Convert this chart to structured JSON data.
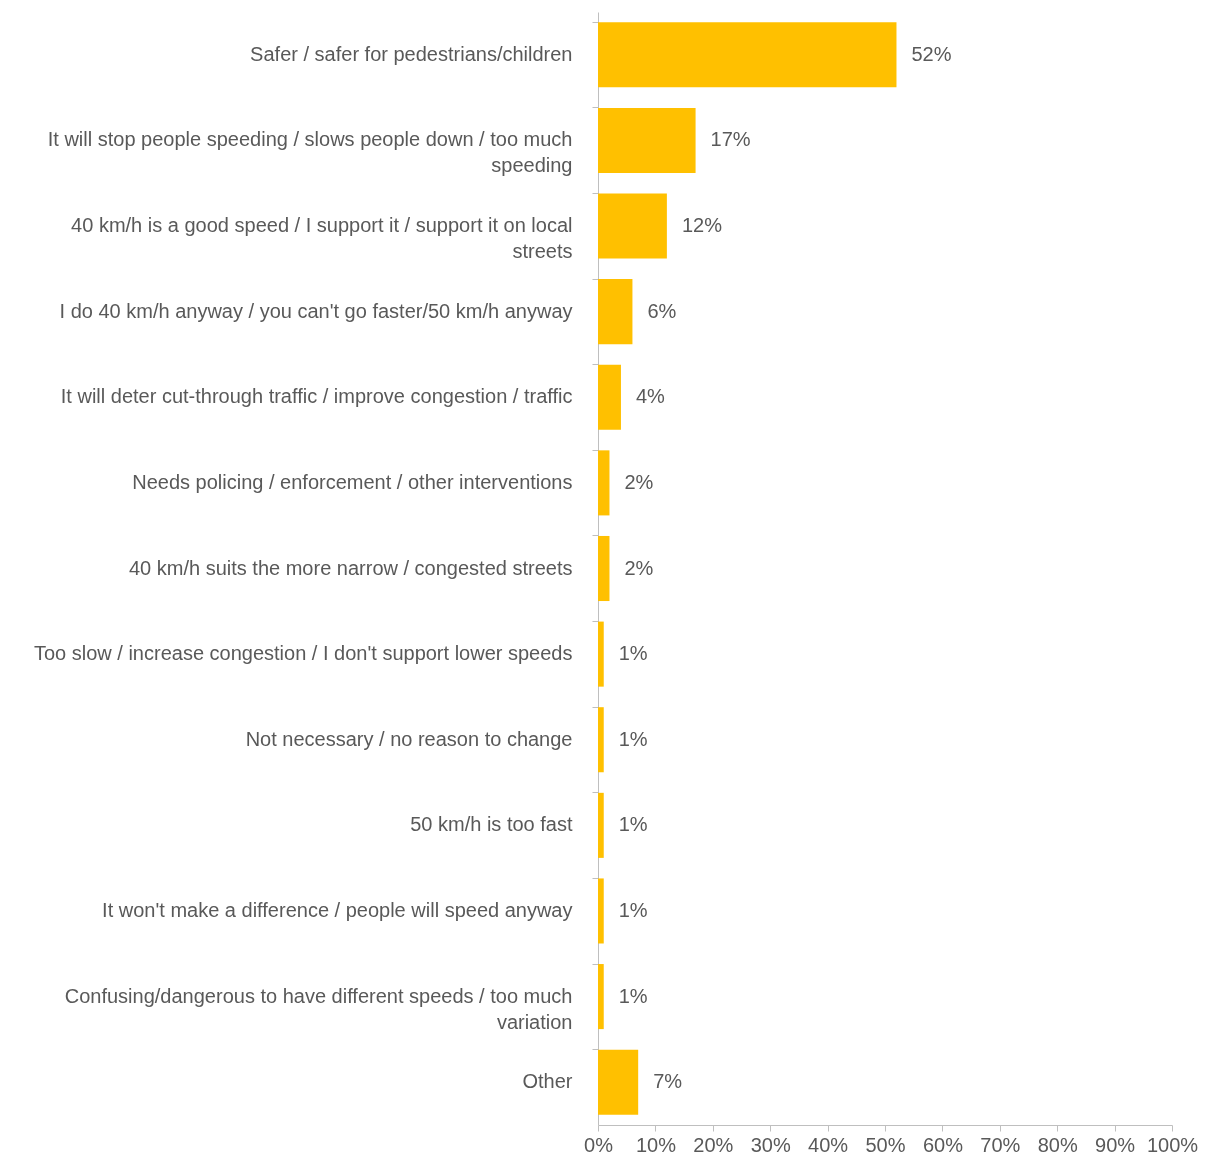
{
  "chart_data": {
    "type": "bar",
    "orientation": "horizontal",
    "categories": [
      "Safer / safer for pedestrians/children",
      "It will stop people speeding / slows people down / too much speeding",
      "40 km/h is a good speed / I support it / support it on local streets",
      "I do 40 km/h anyway / you can't go faster/50 km/h anyway",
      "It will deter cut-through traffic / improve congestion / traffic",
      "Needs policing / enforcement / other interventions",
      "40 km/h suits the more narrow / congested streets",
      "Too slow / increase congestion / I don't support lower speeds",
      "Not necessary / no reason to change",
      "50 km/h is too fast",
      "It won't make a difference / people will speed anyway",
      "Confusing/dangerous to have different speeds / too much variation",
      "Other"
    ],
    "values": [
      52,
      17,
      12,
      6,
      4,
      2,
      2,
      1,
      1,
      1,
      1,
      1,
      7
    ],
    "value_labels": [
      "52%",
      "17%",
      "12%",
      "6%",
      "4%",
      "2%",
      "2%",
      "1%",
      "1%",
      "1%",
      "1%",
      "1%",
      "7%"
    ],
    "color": "#ffc000",
    "xlim": [
      0,
      100
    ],
    "xticks": [
      {
        "value": 0,
        "label": "0%"
      },
      {
        "value": 10,
        "label": "10%"
      },
      {
        "value": 20,
        "label": "20%"
      },
      {
        "value": 30,
        "label": "30%"
      },
      {
        "value": 40,
        "label": "40%"
      },
      {
        "value": 50,
        "label": "50%"
      },
      {
        "value": 60,
        "label": "60%"
      },
      {
        "value": 70,
        "label": "70%"
      },
      {
        "value": 80,
        "label": "80%"
      },
      {
        "value": 90,
        "label": "90%"
      },
      {
        "value": 100,
        "label": "100%"
      }
    ],
    "grid": false
  }
}
